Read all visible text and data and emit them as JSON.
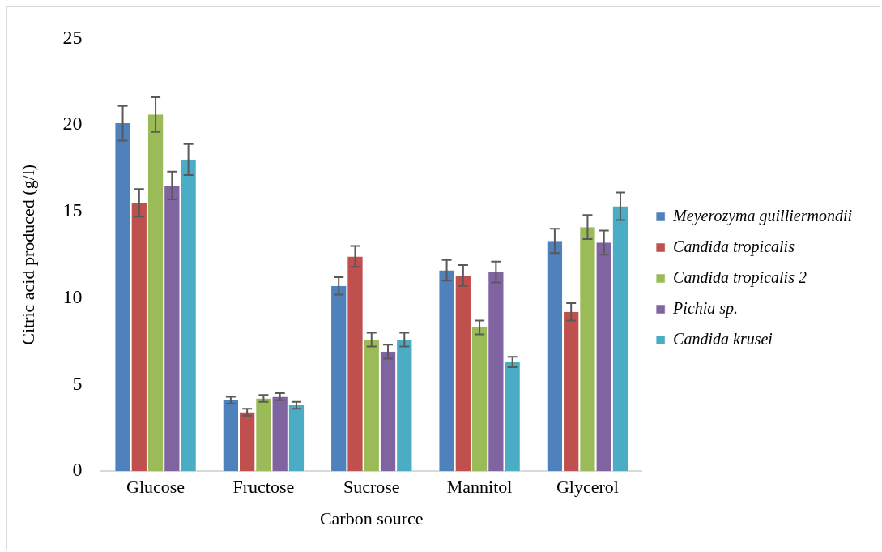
{
  "chart_data": {
    "type": "bar",
    "xlabel": "Carbon source",
    "ylabel": "Citric acid produced (g/l)",
    "categories": [
      "Glucose",
      "Fructose",
      "Sucrose",
      "Mannitol",
      "Glycerol"
    ],
    "series": [
      {
        "name": "Meyerozyma guilliermondii",
        "color": "#4f81bd",
        "values": [
          20.1,
          4.1,
          10.7,
          11.6,
          13.3
        ],
        "errors": [
          1.0,
          0.2,
          0.5,
          0.6,
          0.7
        ]
      },
      {
        "name": "Candida tropicalis",
        "color": "#c0504d",
        "values": [
          15.5,
          3.4,
          12.4,
          11.3,
          9.2
        ],
        "errors": [
          0.8,
          0.2,
          0.6,
          0.6,
          0.5
        ]
      },
      {
        "name": "Candida tropicalis 2",
        "color": "#9bbb59",
        "values": [
          20.6,
          4.2,
          7.6,
          8.3,
          14.1
        ],
        "errors": [
          1.0,
          0.2,
          0.4,
          0.4,
          0.7
        ]
      },
      {
        "name": "Pichia sp.",
        "color": "#8064a2",
        "values": [
          16.5,
          4.3,
          6.9,
          11.5,
          13.2
        ],
        "errors": [
          0.8,
          0.2,
          0.4,
          0.6,
          0.7
        ]
      },
      {
        "name": "Candida krusei",
        "color": "#4bacc6",
        "values": [
          18.0,
          3.8,
          7.6,
          6.3,
          15.3
        ],
        "errors": [
          0.9,
          0.2,
          0.4,
          0.3,
          0.8
        ]
      }
    ],
    "ylim": [
      0,
      25
    ],
    "yticks": [
      0,
      5,
      10,
      15,
      20,
      25
    ],
    "grid": false,
    "legend": "right"
  }
}
